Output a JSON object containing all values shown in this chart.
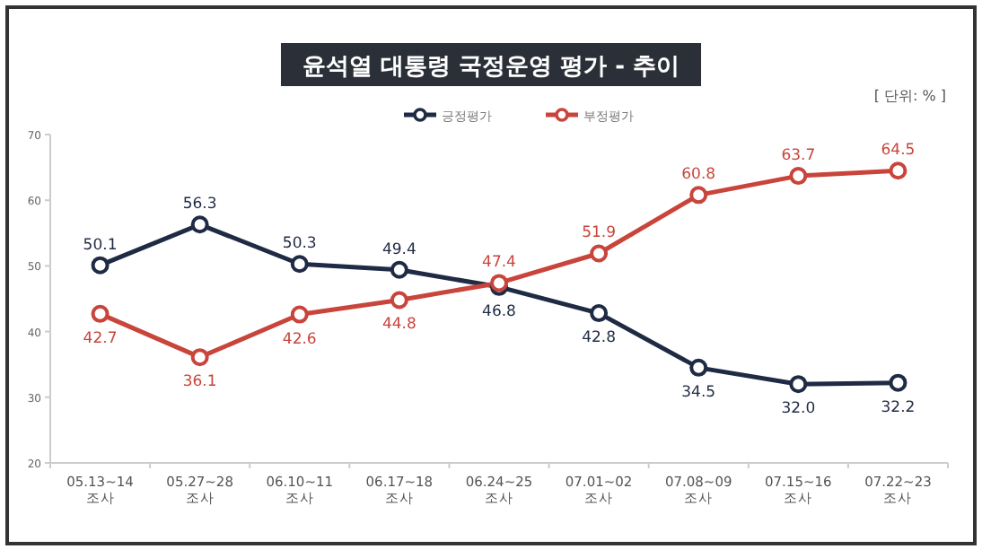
{
  "chart_data": {
    "type": "line",
    "title": "윤석열 대통령 국정운영 평가 - 추이",
    "annotations": [
      "[ 단위: % ]"
    ],
    "categories": [
      "05.13~14 조사",
      "05.27~28 조사",
      "06.10~11 조사",
      "06.17~18 조사",
      "06.24~25 조사",
      "07.01~02 조사",
      "07.08~09 조사",
      "07.15~16 조사",
      "07.22~23 조사"
    ],
    "series": [
      {
        "name": "긍정평가",
        "color": "#1f2a44",
        "values": [
          50.1,
          56.3,
          50.3,
          49.4,
          46.8,
          42.8,
          34.5,
          32.0,
          32.2
        ],
        "value_labels": [
          "50.1",
          "56.3",
          "50.3",
          "49.4",
          "46.8",
          "42.8",
          "34.5",
          "32.0",
          "32.2"
        ]
      },
      {
        "name": "부정평가",
        "color": "#c9443b",
        "values": [
          42.7,
          36.1,
          42.6,
          44.8,
          47.4,
          51.9,
          60.8,
          63.7,
          64.5
        ],
        "value_labels": [
          "42.7",
          "36.1",
          "42.6",
          "44.8",
          "47.4",
          "51.9",
          "60.8",
          "63.7",
          "64.5"
        ]
      }
    ],
    "ylim": [
      20,
      70
    ],
    "yticks": [
      20,
      30,
      40,
      50,
      60,
      70
    ],
    "legend": "top",
    "marker": "circle",
    "line_style": "solid",
    "grid": false
  }
}
